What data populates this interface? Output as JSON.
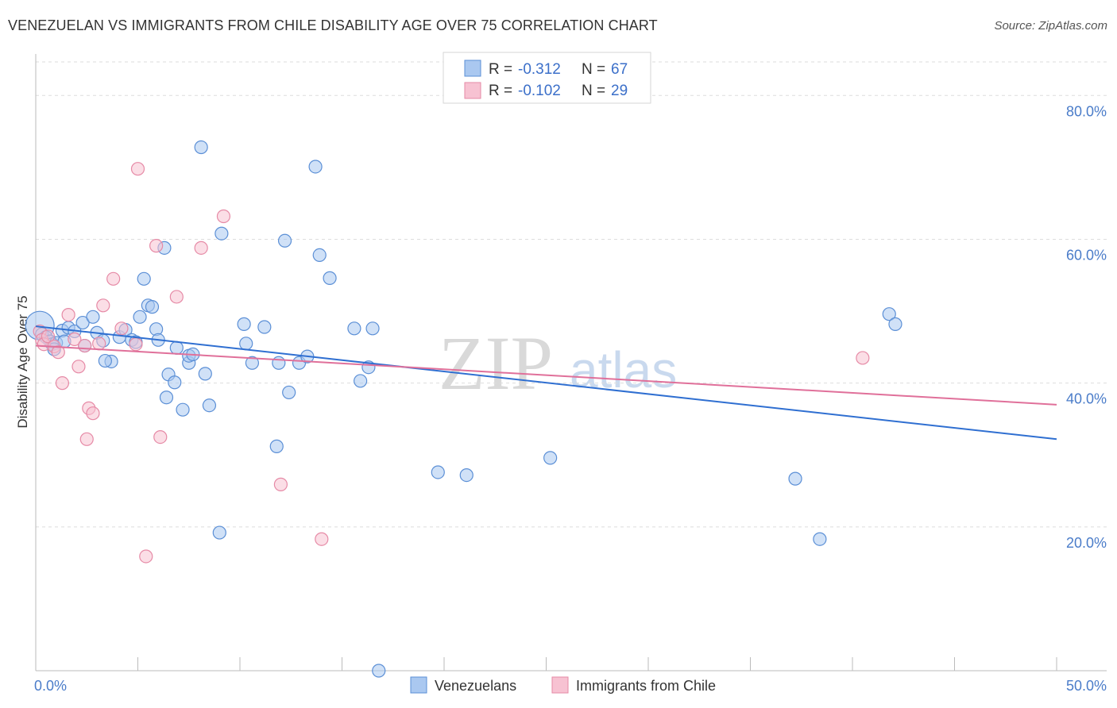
{
  "header": {
    "title": "VENEZUELAN VS IMMIGRANTS FROM CHILE DISABILITY AGE OVER 75 CORRELATION CHART",
    "source": "Source: ZipAtlas.com"
  },
  "watermark": {
    "zip": "ZIP",
    "atlas": "atlas"
  },
  "legend_box": {
    "rows": [
      {
        "r_label": "R =",
        "r_value": "-0.312",
        "n_label": "N =",
        "n_value": "67"
      },
      {
        "r_label": "R =",
        "r_value": "-0.102",
        "n_label": "N =",
        "n_value": "29"
      }
    ]
  },
  "bottom_legend": {
    "series1": "Venezuelans",
    "series2": "Immigrants from Chile"
  },
  "colors": {
    "blue_fill": "#aac8f0",
    "blue_stroke": "#5b8fd6",
    "blue_line": "#2f6fd1",
    "pink_fill": "#f7c2d2",
    "pink_stroke": "#e68aa6",
    "pink_line": "#e0709a",
    "grid": "#dddddd",
    "tick_text": "#4a7cc9"
  },
  "chart_data": {
    "type": "scatter",
    "title": "VENEZUELAN VS IMMIGRANTS FROM CHILE DISABILITY AGE OVER 75 CORRELATION CHART",
    "xlabel": "",
    "ylabel": "Disability Age Over 75",
    "xlim": [
      0,
      50
    ],
    "ylim": [
      0,
      85
    ],
    "x_tick_labels": [
      "0.0%",
      "50.0%"
    ],
    "y_ticks": [
      20,
      40,
      60,
      80
    ],
    "y_tick_labels": [
      "20.0%",
      "40.0%",
      "60.0%",
      "80.0%"
    ],
    "grid": true,
    "legend_position": "top-center",
    "series": [
      {
        "name": "Venezuelans",
        "r": -0.312,
        "n": 67,
        "trend": {
          "x0": 0,
          "y0": 47.9,
          "x1": 50,
          "y1": 32.2
        },
        "points": [
          [
            0.2,
            48.0
          ],
          [
            0.3,
            46.8
          ],
          [
            0.5,
            46.4
          ],
          [
            0.7,
            45.8
          ],
          [
            0.8,
            45.4
          ],
          [
            1.0,
            45.6
          ],
          [
            1.3,
            47.3
          ],
          [
            1.6,
            47.7
          ],
          [
            1.9,
            47.2
          ],
          [
            2.3,
            48.4
          ],
          [
            2.8,
            49.2
          ],
          [
            3.0,
            47.0
          ],
          [
            2.4,
            45.2
          ],
          [
            3.3,
            45.9
          ],
          [
            3.7,
            43.0
          ],
          [
            3.4,
            43.1
          ],
          [
            4.1,
            46.4
          ],
          [
            4.4,
            47.4
          ],
          [
            4.7,
            46.0
          ],
          [
            4.9,
            45.7
          ],
          [
            5.1,
            49.2
          ],
          [
            5.3,
            54.5
          ],
          [
            5.5,
            50.8
          ],
          [
            5.7,
            50.6
          ],
          [
            5.9,
            47.5
          ],
          [
            6.0,
            46.0
          ],
          [
            6.3,
            58.8
          ],
          [
            6.4,
            38.0
          ],
          [
            6.5,
            41.2
          ],
          [
            6.8,
            40.1
          ],
          [
            6.9,
            44.9
          ],
          [
            7.2,
            36.3
          ],
          [
            7.5,
            42.8
          ],
          [
            7.5,
            43.8
          ],
          [
            7.7,
            44.0
          ],
          [
            8.1,
            72.8
          ],
          [
            8.3,
            41.3
          ],
          [
            8.5,
            36.9
          ],
          [
            9.0,
            19.2
          ],
          [
            9.1,
            60.8
          ],
          [
            10.2,
            48.2
          ],
          [
            10.3,
            45.5
          ],
          [
            10.6,
            42.8
          ],
          [
            11.2,
            47.8
          ],
          [
            11.8,
            31.2
          ],
          [
            11.9,
            42.8
          ],
          [
            12.2,
            59.8
          ],
          [
            12.4,
            38.7
          ],
          [
            12.9,
            42.8
          ],
          [
            13.3,
            43.7
          ],
          [
            13.7,
            70.1
          ],
          [
            13.9,
            57.8
          ],
          [
            14.4,
            54.6
          ],
          [
            15.6,
            47.6
          ],
          [
            15.9,
            40.3
          ],
          [
            16.3,
            42.2
          ],
          [
            16.5,
            47.6
          ],
          [
            16.8,
            0.0
          ],
          [
            19.7,
            27.6
          ],
          [
            21.1,
            27.2
          ],
          [
            25.2,
            29.6
          ],
          [
            37.2,
            26.7
          ],
          [
            38.4,
            18.3
          ],
          [
            41.8,
            49.6
          ],
          [
            42.1,
            48.2
          ],
          [
            1.4,
            45.8
          ],
          [
            0.9,
            44.7
          ]
        ]
      },
      {
        "name": "Immigrants from Chile",
        "r": -0.102,
        "n": 29,
        "trend": {
          "x0": 0,
          "y0": 45.2,
          "x1": 50,
          "y1": 37.0
        },
        "points": [
          [
            0.2,
            47.2
          ],
          [
            0.3,
            46.0
          ],
          [
            0.4,
            45.4
          ],
          [
            0.6,
            46.5
          ],
          [
            0.9,
            45.1
          ],
          [
            1.1,
            44.3
          ],
          [
            1.3,
            40.0
          ],
          [
            1.6,
            49.5
          ],
          [
            1.9,
            46.1
          ],
          [
            2.1,
            42.3
          ],
          [
            2.4,
            45.2
          ],
          [
            2.5,
            32.2
          ],
          [
            2.6,
            36.5
          ],
          [
            2.8,
            35.8
          ],
          [
            3.1,
            45.5
          ],
          [
            3.3,
            50.8
          ],
          [
            3.8,
            54.5
          ],
          [
            4.2,
            47.6
          ],
          [
            4.9,
            45.4
          ],
          [
            5.0,
            69.8
          ],
          [
            5.4,
            15.9
          ],
          [
            5.9,
            59.1
          ],
          [
            6.1,
            32.5
          ],
          [
            6.9,
            52.0
          ],
          [
            8.1,
            58.8
          ],
          [
            9.2,
            63.2
          ],
          [
            12.0,
            25.9
          ],
          [
            14.0,
            18.3
          ],
          [
            40.5,
            43.5
          ]
        ]
      }
    ]
  }
}
